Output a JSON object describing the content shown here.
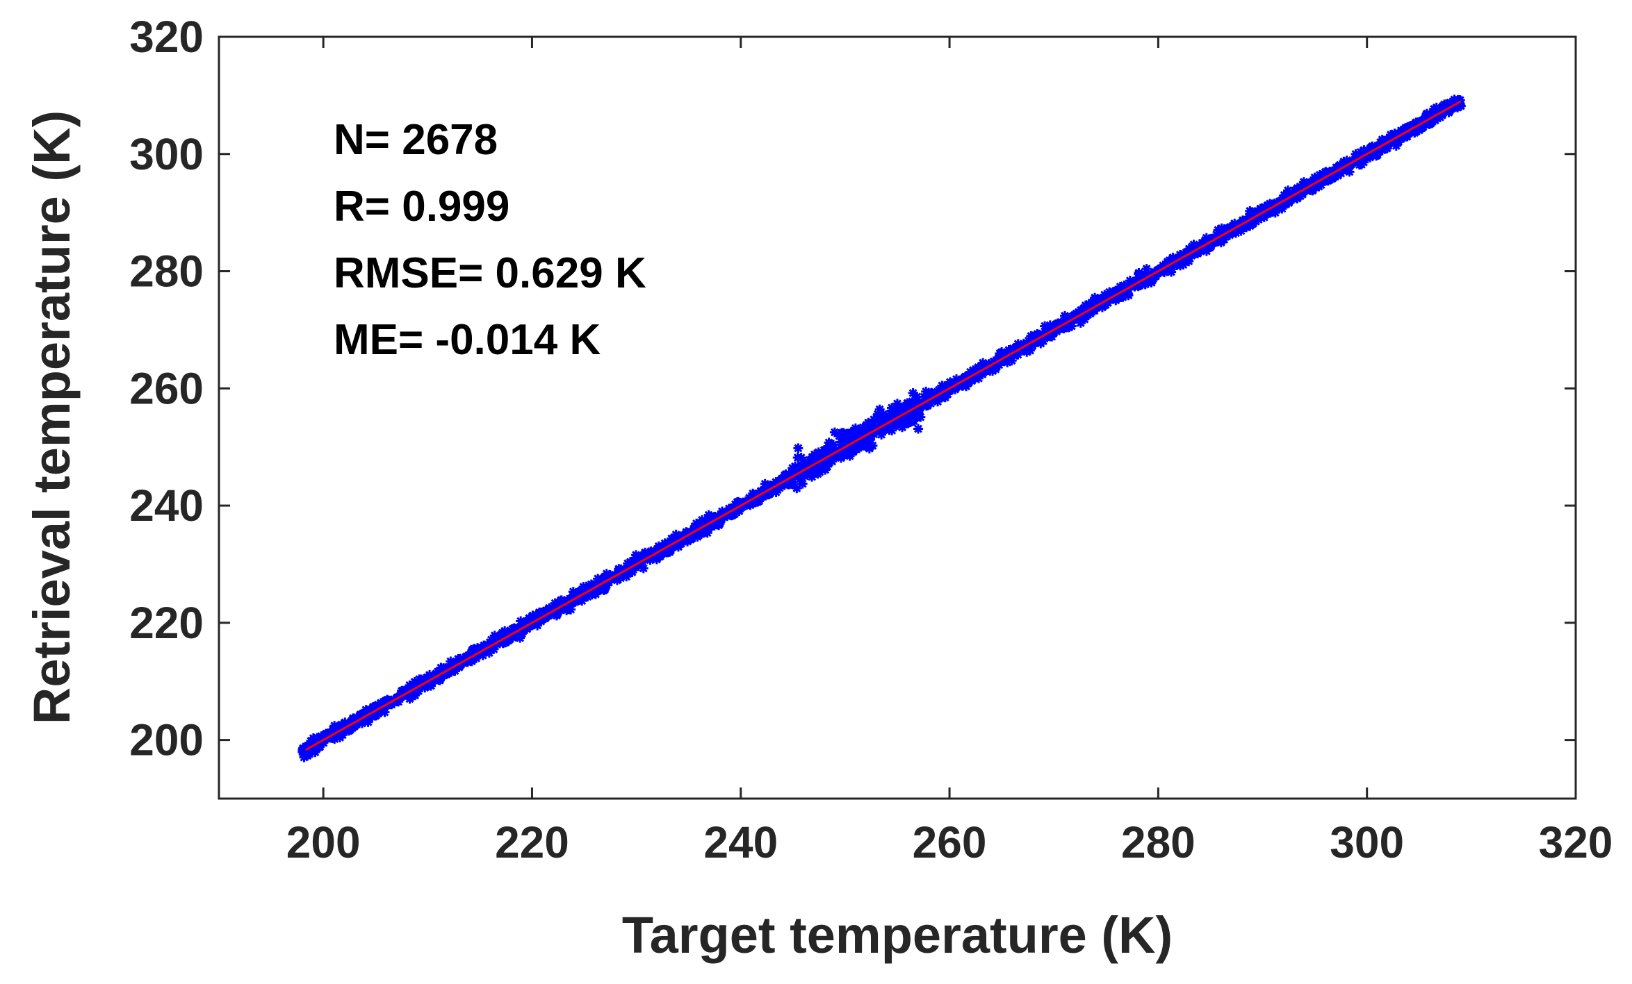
{
  "chart_data": {
    "type": "scatter",
    "xlabel": "Target temperature (K)",
    "ylabel": "Retrieval temperature (K)",
    "xlim": [
      190,
      320
    ],
    "ylim": [
      190,
      320
    ],
    "x_ticks": [
      200,
      220,
      240,
      260,
      280,
      300,
      320
    ],
    "y_ticks": [
      200,
      220,
      240,
      260,
      280,
      300,
      320
    ],
    "grid": false,
    "annotations": [
      "N= 2678",
      "R= 0.999",
      "RMSE= 0.629 K",
      "ME= -0.014 K"
    ],
    "series": [
      {
        "marker": "*",
        "color": "#0000ff",
        "count": 2678,
        "x_range": [
          198,
          309
        ],
        "points": [
          [
            198.5,
            199.0
          ],
          [
            200.0,
            200.4
          ],
          [
            202.0,
            202.6
          ],
          [
            204.0,
            203.8
          ],
          [
            206.0,
            206.2
          ],
          [
            208.0,
            208.5
          ],
          [
            210.0,
            209.8
          ],
          [
            212.0,
            212.4
          ],
          [
            214.0,
            213.7
          ],
          [
            216.0,
            216.3
          ],
          [
            218.0,
            218.4
          ],
          [
            220.0,
            219.8
          ],
          [
            222.0,
            222.3
          ],
          [
            224.0,
            223.9
          ],
          [
            226.0,
            226.4
          ],
          [
            228.0,
            227.8
          ],
          [
            230.0,
            230.2
          ],
          [
            232.0,
            232.5
          ],
          [
            234.0,
            233.8
          ],
          [
            236.0,
            236.3
          ],
          [
            238.0,
            238.1
          ],
          [
            240.0,
            240.4
          ],
          [
            242.0,
            241.6
          ],
          [
            244.0,
            244.5
          ],
          [
            245.5,
            249.8
          ],
          [
            246.0,
            245.2
          ],
          [
            248.0,
            247.1
          ],
          [
            249.0,
            252.5
          ],
          [
            250.0,
            249.3
          ],
          [
            251.0,
            253.2
          ],
          [
            252.0,
            252.6
          ],
          [
            254.0,
            253.4
          ],
          [
            255.0,
            257.4
          ],
          [
            256.0,
            256.7
          ],
          [
            257.0,
            253.1
          ],
          [
            258.0,
            258.4
          ],
          [
            260.0,
            259.7
          ],
          [
            262.0,
            262.8
          ],
          [
            264.0,
            263.5
          ],
          [
            265.0,
            266.2
          ],
          [
            266.0,
            265.8
          ],
          [
            268.0,
            268.3
          ],
          [
            270.0,
            269.8
          ],
          [
            272.0,
            272.2
          ],
          [
            274.0,
            273.9
          ],
          [
            276.0,
            276.2
          ],
          [
            278.0,
            278.1
          ],
          [
            280.0,
            279.7
          ],
          [
            282.0,
            282.3
          ],
          [
            284.0,
            283.8
          ],
          [
            286.0,
            286.2
          ],
          [
            288.0,
            288.1
          ],
          [
            290.0,
            289.6
          ],
          [
            292.0,
            292.4
          ],
          [
            294.0,
            293.7
          ],
          [
            296.0,
            296.3
          ],
          [
            298.0,
            297.9
          ],
          [
            300.0,
            300.2
          ],
          [
            302.0,
            301.6
          ],
          [
            304.0,
            304.3
          ],
          [
            306.0,
            305.8
          ],
          [
            307.0,
            307.3
          ],
          [
            308.0,
            307.6
          ],
          [
            309.0,
            308.2
          ]
        ]
      },
      {
        "type": "line",
        "color": "#ff0000",
        "x": [
          198.3,
          309.0
        ],
        "y": [
          198.3,
          309.0
        ]
      }
    ]
  }
}
